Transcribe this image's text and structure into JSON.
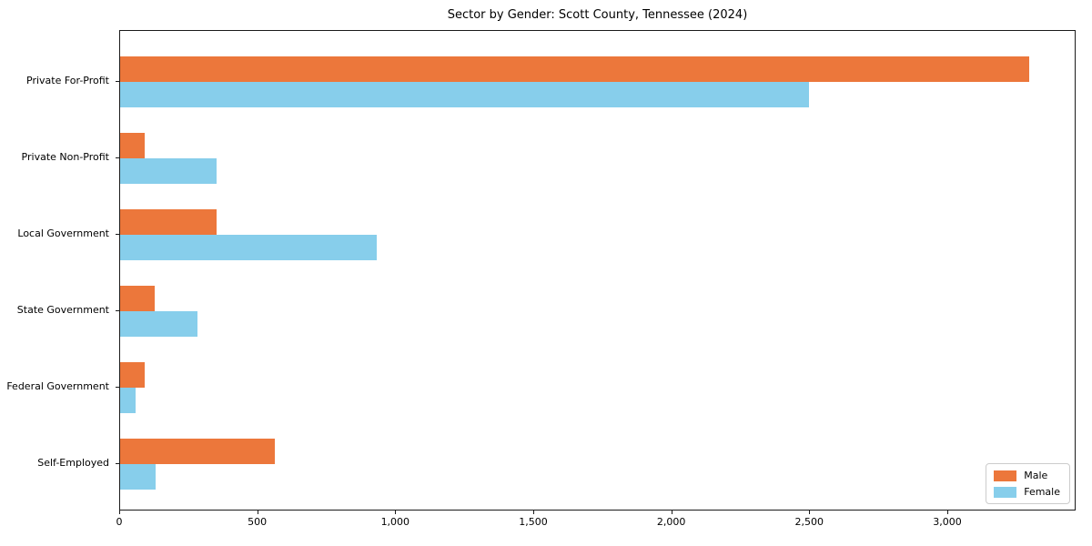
{
  "chart_data": {
    "type": "bar",
    "orientation": "horizontal",
    "title": "Sector by Gender: Scott County, Tennessee (2024)",
    "xlabel": "",
    "ylabel": "",
    "categories": [
      "Private For-Profit",
      "Private Non-Profit",
      "Local Government",
      "State Government",
      "Federal Government",
      "Self-Employed"
    ],
    "series": [
      {
        "name": "Male",
        "color": "#ec773b",
        "values": [
          3300,
          90,
          350,
          125,
          90,
          560
        ]
      },
      {
        "name": "Female",
        "color": "#87ceeb",
        "values": [
          2500,
          350,
          930,
          280,
          55,
          130
        ]
      }
    ],
    "xlim": [
      0,
      3465
    ],
    "x_ticks": [
      0,
      500,
      1000,
      1500,
      2000,
      2500,
      3000
    ],
    "x_tick_labels": [
      "0",
      "500",
      "1,000",
      "1,500",
      "2,000",
      "2,500",
      "3,000"
    ],
    "grid": false,
    "legend_position": "lower right",
    "background_color": "#ffffff",
    "spine_color": "#1a1a1a"
  }
}
